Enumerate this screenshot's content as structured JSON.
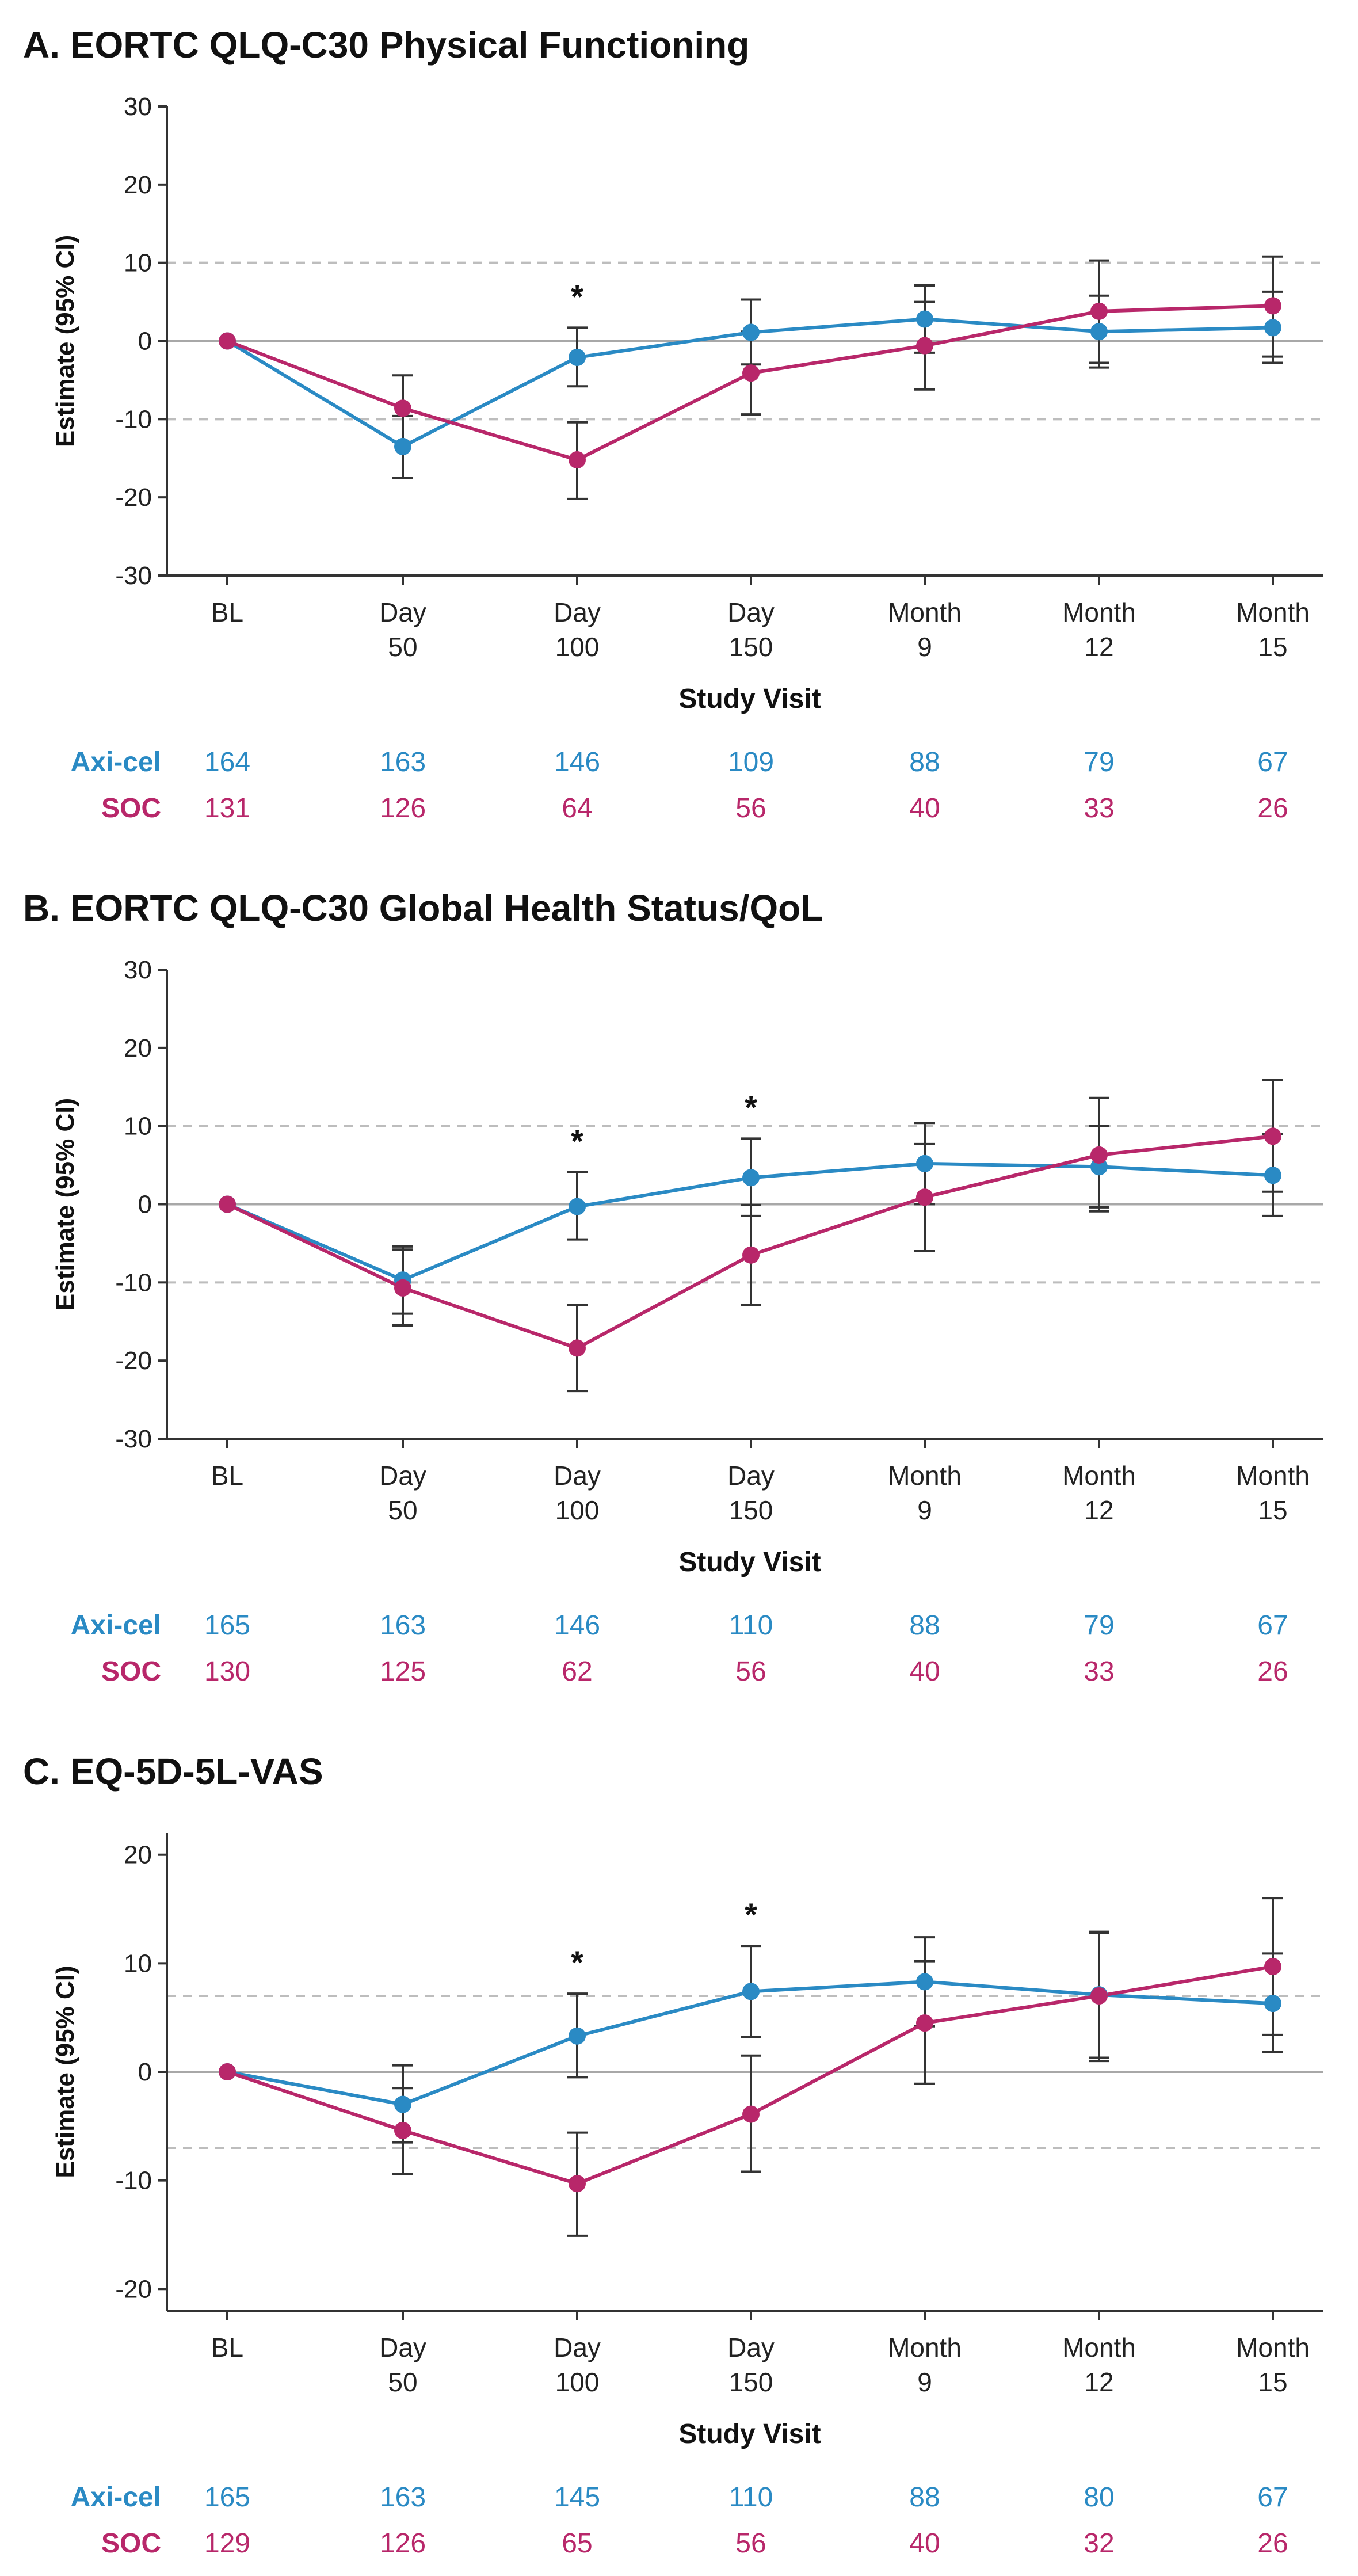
{
  "colors": {
    "axicel": "#2a8ac4",
    "soc": "#b8276a",
    "axis": "#333333",
    "grid": "#bdbdbd",
    "ci": "#333333"
  },
  "chart_data": [
    {
      "type": "line",
      "title": "A. EORTC QLQ-C30 Physical Functioning",
      "xlabel": "Study Visit",
      "ylabel": "Estimate (95% CI)",
      "ylim": [
        -30,
        30
      ],
      "yticks": [
        30,
        20,
        10,
        0,
        -10,
        -20,
        -30
      ],
      "ref_lines": [
        10,
        -10
      ],
      "categories": [
        [
          "BL"
        ],
        [
          "Day",
          "50"
        ],
        [
          "Day",
          "100"
        ],
        [
          "Day",
          "150"
        ],
        [
          "Month",
          "9"
        ],
        [
          "Month",
          "12"
        ],
        [
          "Month",
          "15"
        ]
      ],
      "series": [
        {
          "name": "Axi-cel",
          "key": "axicel",
          "values": [
            0,
            -13.5,
            -2.1,
            1.1,
            2.8,
            1.2,
            1.7
          ],
          "lower": [
            0,
            -17.5,
            -5.8,
            -3.0,
            -1.5,
            -3.4,
            -2.8
          ],
          "upper": [
            0,
            -9.6,
            1.7,
            5.3,
            7.1,
            5.8,
            6.3
          ],
          "n": [
            164,
            163,
            146,
            109,
            88,
            79,
            67
          ]
        },
        {
          "name": "SOC",
          "key": "soc",
          "values": [
            0,
            -8.6,
            -15.2,
            -4.1,
            -0.6,
            3.8,
            4.5
          ],
          "lower": [
            0,
            -12.9,
            -20.2,
            -9.4,
            -6.2,
            -2.8,
            -2.0
          ],
          "upper": [
            0,
            -4.4,
            -10.4,
            1.2,
            5.0,
            10.3,
            10.8
          ],
          "n": [
            131,
            126,
            64,
            56,
            40,
            33,
            26
          ]
        }
      ],
      "significant": [
        "*",
        "",
        "",
        ""
      ],
      "sig_index": [
        2
      ]
    },
    {
      "type": "line",
      "title": "B. EORTC QLQ-C30 Global Health Status/QoL",
      "xlabel": "Study Visit",
      "ylabel": "Estimate (95% CI)",
      "ylim": [
        -30,
        30
      ],
      "yticks": [
        30,
        20,
        10,
        0,
        -10,
        -20,
        -30
      ],
      "ref_lines": [
        10,
        -10
      ],
      "categories": [
        [
          "BL"
        ],
        [
          "Day",
          "50"
        ],
        [
          "Day",
          "100"
        ],
        [
          "Day",
          "150"
        ],
        [
          "Month",
          "9"
        ],
        [
          "Month",
          "12"
        ],
        [
          "Month",
          "15"
        ]
      ],
      "series": [
        {
          "name": "Axi-cel",
          "key": "axicel",
          "values": [
            0,
            -9.7,
            -0.3,
            3.4,
            5.2,
            4.8,
            3.7
          ],
          "lower": [
            0,
            -14.0,
            -4.5,
            -1.5,
            0.0,
            -0.4,
            -1.5
          ],
          "upper": [
            0,
            -5.4,
            4.1,
            8.4,
            10.4,
            10.0,
            9.0
          ],
          "n": [
            165,
            163,
            146,
            110,
            88,
            79,
            67
          ]
        },
        {
          "name": "SOC",
          "key": "soc",
          "values": [
            0,
            -10.7,
            -18.4,
            -6.5,
            0.9,
            6.3,
            8.7
          ],
          "lower": [
            0,
            -15.5,
            -23.9,
            -12.9,
            -6.0,
            -0.9,
            1.6
          ],
          "upper": [
            0,
            -5.8,
            -12.9,
            -0.1,
            7.7,
            13.6,
            15.9
          ],
          "n": [
            130,
            125,
            62,
            56,
            40,
            33,
            26
          ]
        }
      ],
      "sig_index": [
        2,
        3
      ]
    },
    {
      "type": "line",
      "title": "C. EQ-5D-5L-VAS",
      "xlabel": "Study Visit",
      "ylabel": "Estimate (95% CI)",
      "ylim": [
        -22,
        22
      ],
      "yticks": [
        20,
        10,
        0,
        -10,
        -20
      ],
      "ref_lines": [
        7,
        -7
      ],
      "categories": [
        [
          "BL"
        ],
        [
          "Day",
          "50"
        ],
        [
          "Day",
          "100"
        ],
        [
          "Day",
          "150"
        ],
        [
          "Month",
          "9"
        ],
        [
          "Month",
          "12"
        ],
        [
          "Month",
          "15"
        ]
      ],
      "series": [
        {
          "name": "Axi-cel",
          "key": "axicel",
          "values": [
            0,
            -3.0,
            3.3,
            7.4,
            8.3,
            7.1,
            6.3
          ],
          "lower": [
            0,
            -6.5,
            -0.5,
            3.2,
            4.2,
            1.3,
            1.8
          ],
          "upper": [
            0,
            0.6,
            7.2,
            11.6,
            12.4,
            12.9,
            10.9
          ],
          "n": [
            165,
            163,
            145,
            110,
            88,
            80,
            67
          ]
        },
        {
          "name": "SOC",
          "key": "soc",
          "values": [
            0,
            -5.4,
            -10.3,
            -3.9,
            4.5,
            7.0,
            9.7
          ],
          "lower": [
            0,
            -9.4,
            -15.1,
            -9.2,
            -1.1,
            1.0,
            3.4
          ],
          "upper": [
            0,
            -1.5,
            -5.6,
            1.5,
            10.2,
            12.8,
            16.0
          ],
          "n": [
            129,
            126,
            65,
            56,
            40,
            32,
            26
          ]
        }
      ],
      "sig_index": [
        2,
        3
      ]
    }
  ]
}
